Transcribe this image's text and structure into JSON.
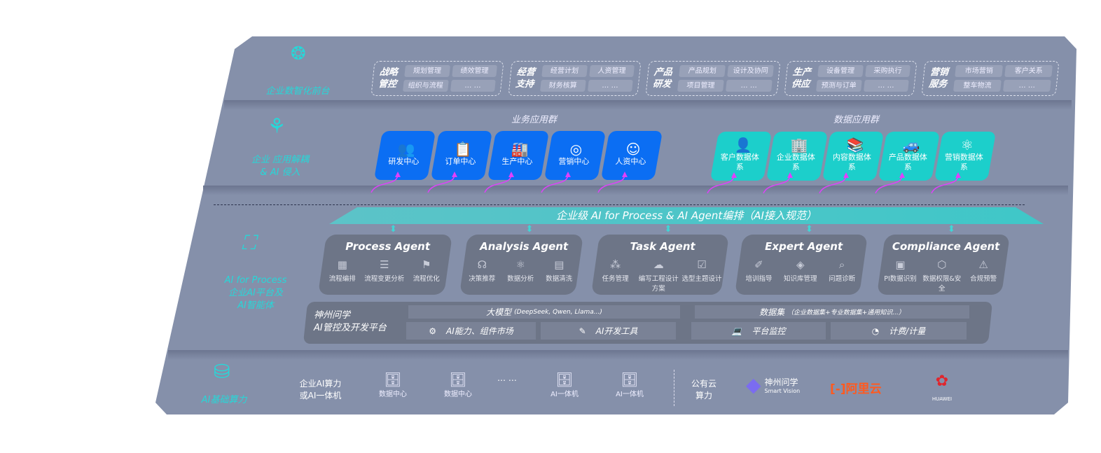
{
  "front": {
    "label": "企业数智化前台",
    "icon": "brain-icon",
    "groups": [
      {
        "title": "战略管控",
        "items": [
          "规划管理",
          "绩效管理",
          "组织与流程",
          "… …"
        ]
      },
      {
        "title": "经营支持",
        "items": [
          "经营计划",
          "人资管理",
          "财务核算",
          "… …"
        ]
      },
      {
        "title": "产品研发",
        "items": [
          "产品规划",
          "设计及协同",
          "项目管理",
          "… …"
        ]
      },
      {
        "title": "生产供应",
        "items": [
          "设备管理",
          "采购执行",
          "预测与订单",
          "… …"
        ]
      },
      {
        "title": "营销服务",
        "items": [
          "市场营销",
          "客户关系",
          "整车物流",
          "… …"
        ]
      }
    ]
  },
  "apps": {
    "label1": "企业 应用解耦",
    "label2": "& AI 侵入",
    "icon": "molecule-icon",
    "business": {
      "title": "业务应用群",
      "tiles": [
        {
          "label": "研发中心",
          "icon": "users-icon",
          "g": "👥"
        },
        {
          "label": "订单中心",
          "icon": "clipboard-icon",
          "g": "📋"
        },
        {
          "label": "生产中心",
          "icon": "factory-icon",
          "g": "🏭"
        },
        {
          "label": "营销中心",
          "icon": "target-icon",
          "g": "◎"
        },
        {
          "label": "人资中心",
          "icon": "person-icon",
          "g": "☺"
        }
      ]
    },
    "data": {
      "title": "数据应用群",
      "tiles": [
        {
          "label": "客户数据体系",
          "icon": "user-icon",
          "g": "👤"
        },
        {
          "label": "企业数据体系",
          "icon": "building-icon",
          "g": "🏢"
        },
        {
          "label": "内容数据体系",
          "icon": "books-icon",
          "g": "📚"
        },
        {
          "label": "产品数据体系",
          "icon": "car-icon",
          "g": "🚙"
        },
        {
          "label": "营销数据体系",
          "icon": "atom-icon",
          "g": "⚛"
        }
      ]
    }
  },
  "orchestration": "企业级 AI for Process & AI Agent编排（AI接入规范）",
  "ai": {
    "label1": "AI for Process",
    "label2": "企业AI平台及",
    "label3": "AI智能体",
    "icon": "face-scan-icon",
    "agents": [
      {
        "name": "Process Agent",
        "items": [
          "流程编排",
          "流程变更分析",
          "流程优化"
        ]
      },
      {
        "name": "Analysis Agent",
        "items": [
          "决策推荐",
          "数据分析",
          "数据清洗"
        ]
      },
      {
        "name": "Task Agent",
        "items": [
          "任务管理",
          "编写工程设计方案",
          "选型主题设计"
        ]
      },
      {
        "name": "Expert Agent",
        "items": [
          "培训指导",
          "知识库管理",
          "问题诊断"
        ]
      },
      {
        "name": "Compliance Agent",
        "items": [
          "PI数据识别",
          "数据权限&安全",
          "合规预警"
        ]
      }
    ]
  },
  "platform": {
    "title1": "神州问学",
    "title2": "AI管控及开发平台",
    "model": "大模型",
    "model_note": "(DeepSeek, Qwen, Llama...)",
    "market": "AI能力、组件市场",
    "devtools": "AI开发工具",
    "dataset": "数据集",
    "dataset_note": "（企业数据集+专业数据集+通用知识...）",
    "monitor": "平台监控",
    "billing": "计费/计量"
  },
  "infra": {
    "label": "AI基础算力",
    "icon": "database-icon",
    "private1": "企业AI算力",
    "private2": "或AI一体机",
    "servers": [
      "数据中心",
      "数据中心",
      "AI一体机",
      "AI一体机"
    ],
    "ellipsis": "… …",
    "public1": "公有云",
    "public2": "算力",
    "logos": [
      {
        "name": "神州问学",
        "sub": "Smart Vision"
      },
      {
        "name": "阿里云"
      },
      {
        "name": "HUAWEI"
      }
    ]
  },
  "colors": {
    "panel": "#8590aa",
    "blue": "#0b6ef3",
    "teal": "#1ccfcb",
    "accent": "#27d7d8",
    "arrow": "#e040fb"
  }
}
